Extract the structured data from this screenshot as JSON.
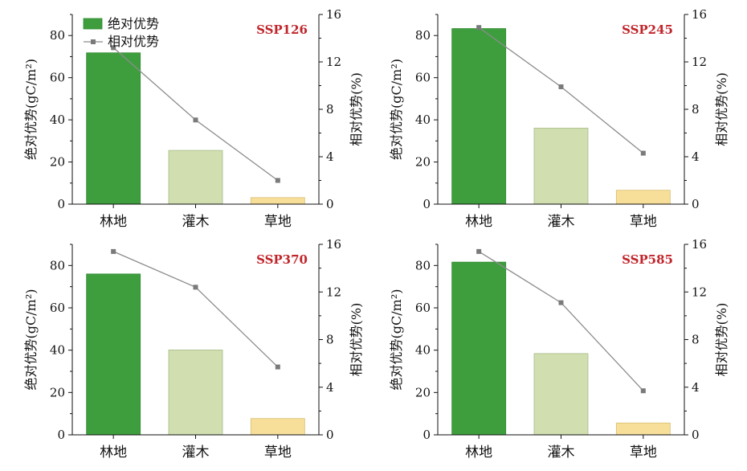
{
  "chart_data": [
    {
      "type": "bar",
      "scenario": "SSP126",
      "categories": [
        "林地",
        "灌木",
        "草地"
      ],
      "series": [
        {
          "name": "绝对优势",
          "type": "bar",
          "axis": "left",
          "values": [
            71.8,
            25.5,
            3.1
          ]
        },
        {
          "name": "相对优势",
          "type": "line",
          "axis": "right",
          "values": [
            13.2,
            7.1,
            2.0
          ]
        }
      ],
      "ylabel": "绝对优势(gC/m²)",
      "y2label": "相对优势(%)",
      "ylim": [
        0,
        90
      ],
      "y2lim": [
        0,
        16
      ],
      "yticks": [
        0,
        20,
        40,
        60,
        80
      ],
      "y2ticks": [
        0,
        4,
        8,
        12,
        16
      ]
    },
    {
      "type": "bar",
      "scenario": "SSP245",
      "categories": [
        "林地",
        "灌木",
        "草地"
      ],
      "series": [
        {
          "name": "绝对优势",
          "type": "bar",
          "axis": "left",
          "values": [
            83.3,
            36.1,
            6.6
          ]
        },
        {
          "name": "相对优势",
          "type": "line",
          "axis": "right",
          "values": [
            14.9,
            9.9,
            4.3
          ]
        }
      ],
      "ylabel": "绝对优势(gC/m²)",
      "y2label": "相对优势(%)",
      "ylim": [
        0,
        90
      ],
      "y2lim": [
        0,
        16
      ],
      "yticks": [
        0,
        20,
        40,
        60,
        80
      ],
      "y2ticks": [
        0,
        4,
        8,
        12,
        16
      ]
    },
    {
      "type": "bar",
      "scenario": "SSP370",
      "categories": [
        "林地",
        "灌木",
        "草地"
      ],
      "series": [
        {
          "name": "绝对优势",
          "type": "bar",
          "axis": "left",
          "values": [
            76.0,
            40.1,
            7.7
          ]
        },
        {
          "name": "相对优势",
          "type": "line",
          "axis": "right",
          "values": [
            15.4,
            12.4,
            5.7
          ]
        }
      ],
      "ylabel": "绝对优势(gC/m²)",
      "y2label": "相对优势(%)",
      "ylim": [
        0,
        90
      ],
      "y2lim": [
        0,
        16
      ],
      "yticks": [
        0,
        20,
        40,
        60,
        80
      ],
      "y2ticks": [
        0,
        4,
        8,
        12,
        16
      ]
    },
    {
      "type": "bar",
      "scenario": "SSP585",
      "categories": [
        "林地",
        "灌木",
        "草地"
      ],
      "series": [
        {
          "name": "绝对优势",
          "type": "bar",
          "axis": "left",
          "values": [
            81.6,
            38.4,
            5.6
          ]
        },
        {
          "name": "相对优势",
          "type": "line",
          "axis": "right",
          "values": [
            15.4,
            11.1,
            3.7
          ]
        }
      ],
      "ylabel": "绝对优势(gC/m²)",
      "y2label": "相对优势(%)",
      "ylim": [
        0,
        90
      ],
      "y2lim": [
        0,
        16
      ],
      "yticks": [
        0,
        20,
        40,
        60,
        80
      ],
      "y2ticks": [
        0,
        4,
        8,
        12,
        16
      ]
    }
  ],
  "legend": {
    "bar_label": "绝对优势",
    "line_label": "相对优势",
    "location": "upper-left of first panel"
  },
  "colors": {
    "bars": [
      "#3e9e3e",
      "#d0deb0",
      "#f7df9a"
    ],
    "bar_edges": [
      "#2f8a2f",
      "#a9bd8a",
      "#d8be70"
    ],
    "line": "#8c8c8c",
    "scenario_label": "#c0242a"
  }
}
